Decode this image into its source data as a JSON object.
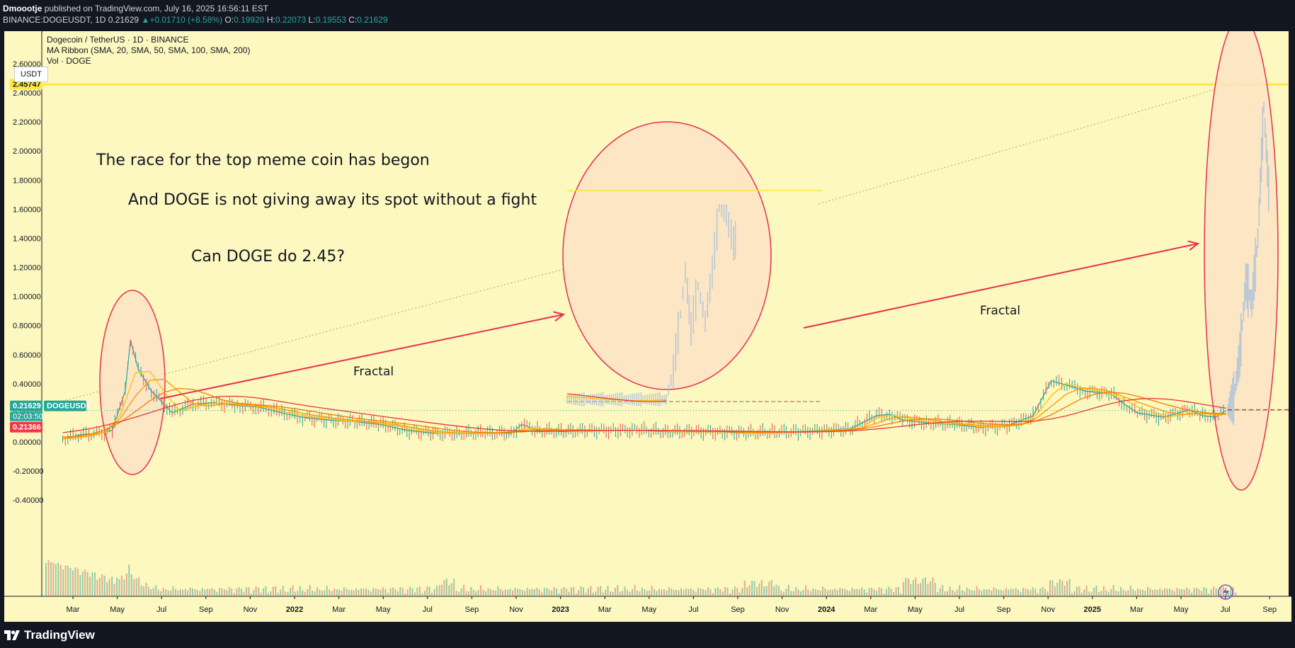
{
  "header": {
    "author": "Dmoootje",
    "published_text": "published on TradingView.com, July 16, 2025 16:56:11 EST",
    "symbol_line": "BINANCE:DOGEUSDT, 1D",
    "price": "0.21629",
    "change": "▲+0.01710 (+8.58%)",
    "o_label": "O:",
    "o_value": "0.19920",
    "h_label": "H:",
    "h_value": "0.22073",
    "l_label": "L:",
    "l_value": "0.19553",
    "c_label": "C:",
    "c_value": "0.21629"
  },
  "legend": {
    "title": "Dogecoin / TetherUS · 1D · BINANCE",
    "indicator": "MA Ribbon (SMA, 20, SMA, 50, SMA, 100, SMA, 200)",
    "volume": "Vol · DOGE"
  },
  "unit_label": "USDT",
  "price_tags": {
    "top_level": "2.45747",
    "current_price": "0.21629",
    "ticker": "DOGEUSDT",
    "countdown": "02:03:50",
    "ma_value": "0.21366"
  },
  "annotations": {
    "line1": "The race for the top meme coin has begon",
    "line2": "And DOGE is not giving away its spot without a fight",
    "line3": "Can DOGE do 2.45?",
    "fractal1": "Fractal",
    "fractal2": "Fractal"
  },
  "colors": {
    "background": "#fdf7c0",
    "frame": "#131722",
    "ellipse_stroke": "#e8304c",
    "ellipse_fill": "#fbe3c4",
    "arrow": "#e8304c",
    "level_line": "#fde843",
    "ma_fast": "#ffc107",
    "ma_mid": "#ff9800",
    "ma_slow": "#f57c00",
    "ma_200": "#e53935",
    "candle_up": "#26a69a",
    "candle_down": "#ef5350",
    "ghost_candle": "#b7c7d6",
    "tag_green": "#26a69a",
    "tag_red": "#f23645",
    "tag_yellow": "#fde843"
  },
  "brand": {
    "name": "TradingView",
    "logo_icon": "tradingview-logo-icon"
  },
  "chart_data": {
    "type": "candlestick",
    "title": "Dogecoin / TetherUS · 1D · BINANCE",
    "ylabel": "USDT",
    "ylim": [
      -0.46,
      2.7
    ],
    "y_ticks": [
      "2.60000",
      "2.40000",
      "2.20000",
      "2.00000",
      "1.80000",
      "1.60000",
      "1.40000",
      "1.20000",
      "1.00000",
      "0.80000",
      "0.60000",
      "0.40000",
      "0.20000",
      "0.00000",
      "-0.20000",
      "-0.40000"
    ],
    "x_ticks": [
      "Mar",
      "May",
      "Jul",
      "Sep",
      "Nov",
      "2022",
      "Mar",
      "May",
      "Jul",
      "Sep",
      "Nov",
      "2023",
      "Mar",
      "May",
      "Jul",
      "Sep",
      "Nov",
      "2024",
      "Mar",
      "May",
      "Jul",
      "Sep",
      "Nov",
      "2025",
      "Mar",
      "May",
      "Jul",
      "Sep"
    ],
    "x_tick_bold": [
      false,
      false,
      false,
      false,
      false,
      true,
      false,
      false,
      false,
      false,
      false,
      true,
      false,
      false,
      false,
      false,
      false,
      true,
      false,
      false,
      false,
      false,
      false,
      true,
      false,
      false,
      false,
      false
    ],
    "price_series": {
      "name": "DOGEUSDT",
      "x": [
        2021.08,
        2021.15,
        2021.22,
        2021.27,
        2021.32,
        2021.34,
        2021.37,
        2021.42,
        2021.5,
        2021.58,
        2021.66,
        2021.75,
        2021.83,
        2021.92,
        2022.0,
        2022.1,
        2022.2,
        2022.3,
        2022.4,
        2022.5,
        2022.6,
        2022.7,
        2022.8,
        2022.84,
        2022.9,
        2023.0,
        2023.1,
        2023.2,
        2023.3,
        2023.4,
        2023.5,
        2023.6,
        2023.7,
        2023.8,
        2023.9,
        2024.0,
        2024.1,
        2024.2,
        2024.25,
        2024.3,
        2024.4,
        2024.5,
        2024.6,
        2024.7,
        2024.8,
        2024.87,
        2024.95,
        2025.0,
        2025.1,
        2025.15,
        2025.2,
        2025.3,
        2025.4,
        2025.45,
        2025.5,
        2025.54
      ],
      "y": [
        0.02,
        0.05,
        0.06,
        0.08,
        0.35,
        0.7,
        0.5,
        0.35,
        0.2,
        0.26,
        0.27,
        0.25,
        0.24,
        0.2,
        0.17,
        0.15,
        0.14,
        0.12,
        0.08,
        0.06,
        0.06,
        0.06,
        0.06,
        0.12,
        0.08,
        0.07,
        0.08,
        0.08,
        0.08,
        0.07,
        0.07,
        0.07,
        0.06,
        0.07,
        0.07,
        0.08,
        0.09,
        0.18,
        0.19,
        0.15,
        0.13,
        0.12,
        0.1,
        0.11,
        0.18,
        0.42,
        0.38,
        0.35,
        0.33,
        0.26,
        0.2,
        0.17,
        0.22,
        0.18,
        0.17,
        0.21629
      ]
    },
    "projection_series": {
      "name": "Fractal projection",
      "x": [
        2025.5,
        2025.52,
        2025.54,
        2025.56,
        2025.58,
        2025.6,
        2025.62,
        2025.64
      ],
      "y": [
        0.22,
        0.3,
        0.6,
        1.1,
        0.95,
        1.4,
        2.3,
        1.6
      ]
    },
    "horizontal_levels": [
      2.45747
    ]
  }
}
